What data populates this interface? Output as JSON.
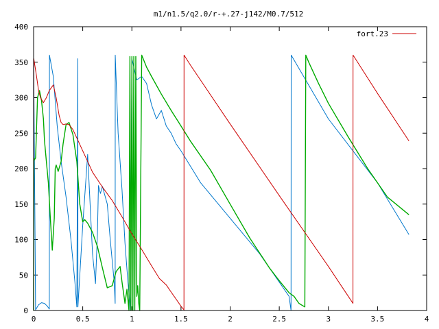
{
  "chart_data": {
    "type": "line",
    "title": "m1/n1.5/q2.0/r-+.27-j142/M0.7/512",
    "xlabel": "",
    "ylabel": "",
    "xlim": [
      0,
      4
    ],
    "ylim": [
      0,
      400
    ],
    "x_ticks": [
      {
        "value": 0,
        "label": "0"
      },
      {
        "value": 0.5,
        "label": "0.5"
      },
      {
        "value": 1,
        "label": "1"
      },
      {
        "value": 1.5,
        "label": "1.5"
      },
      {
        "value": 2,
        "label": "2"
      },
      {
        "value": 2.5,
        "label": "2.5"
      },
      {
        "value": 3,
        "label": "3"
      },
      {
        "value": 3.5,
        "label": "3.5"
      },
      {
        "value": 4,
        "label": "4"
      }
    ],
    "y_ticks": [
      {
        "value": 0,
        "label": "0"
      },
      {
        "value": 50,
        "label": "50"
      },
      {
        "value": 100,
        "label": "100"
      },
      {
        "value": 150,
        "label": "150"
      },
      {
        "value": 200,
        "label": "200"
      },
      {
        "value": 250,
        "label": "250"
      },
      {
        "value": 300,
        "label": "300"
      },
      {
        "value": 350,
        "label": "350"
      },
      {
        "value": 400,
        "label": "400"
      }
    ],
    "grid": false,
    "legend": {
      "position": "top-right",
      "entries": [
        "fort.23"
      ]
    },
    "series": [
      {
        "name": "fort.23",
        "color": "#cc0000",
        "in_legend": true,
        "x": [
          0,
          0.002,
          0.01,
          0.03,
          0.05,
          0.07,
          0.1,
          0.13,
          0.16,
          0.2,
          0.23,
          0.26,
          0.28,
          0.3,
          0.33,
          0.36,
          0.4,
          0.45,
          0.5,
          0.55,
          0.6,
          0.7,
          0.8,
          0.9,
          1.0,
          1.1,
          1.2,
          1.28,
          1.35,
          1.4,
          1.45,
          1.5,
          1.53,
          1.531,
          1.6,
          2.0,
          2.5,
          3.0,
          3.25,
          3.251,
          3.5,
          3.82
        ],
        "y": [
          180,
          355,
          348,
          330,
          310,
          300,
          293,
          300,
          310,
          318,
          300,
          275,
          265,
          262,
          263,
          262,
          255,
          240,
          225,
          210,
          195,
          174,
          155,
          132,
          108,
          86,
          63,
          45,
          36,
          26,
          16,
          6,
          1,
          360,
          345,
          263,
          162,
          62,
          10,
          360,
          306,
          239
        ]
      },
      {
        "name": "",
        "color": "#00aa00",
        "in_legend": false,
        "x": [
          0,
          0.003,
          0.006,
          0.02,
          0.04,
          0.06,
          0.08,
          0.1,
          0.11,
          0.13,
          0.15,
          0.17,
          0.19,
          0.21,
          0.22,
          0.23,
          0.25,
          0.28,
          0.3,
          0.33,
          0.36,
          0.4,
          0.44,
          0.47,
          0.5,
          0.52,
          0.55,
          0.6,
          0.65,
          0.7,
          0.75,
          0.8,
          0.84,
          0.88,
          0.9,
          0.93,
          0.95,
          0.97,
          0.98,
          0.99,
          1.0,
          1.01,
          1.02,
          1.03,
          1.04,
          1.05,
          1.06,
          1.07,
          1.08,
          1.1,
          1.15,
          1.2,
          1.3,
          1.4,
          1.5,
          1.6,
          1.8,
          2.0,
          2.2,
          2.4,
          2.5,
          2.6,
          2.65,
          2.7,
          2.76,
          2.77,
          2.8,
          2.9,
          3.0,
          3.2,
          3.4,
          3.6,
          3.82
        ],
        "y": [
          0,
          215,
          212,
          215,
          300,
          310,
          296,
          270,
          240,
          210,
          180,
          130,
          85,
          130,
          200,
          205,
          196,
          210,
          235,
          262,
          265,
          248,
          210,
          150,
          125,
          128,
          123,
          110,
          90,
          60,
          32,
          35,
          55,
          62,
          40,
          10,
          30,
          0,
          358,
          0,
          358,
          0,
          358,
          0,
          358,
          20,
          35,
          10,
          0,
          360,
          343,
          330,
          305,
          282,
          260,
          238,
          198,
          150,
          102,
          60,
          42,
          25,
          20,
          10,
          5,
          360,
          350,
          320,
          292,
          245,
          200,
          160,
          135
        ]
      },
      {
        "name": "",
        "color": "#0077cc",
        "in_legend": false,
        "x": [
          0,
          0.001,
          0.02,
          0.05,
          0.08,
          0.11,
          0.14,
          0.16,
          0.161,
          0.2,
          0.24,
          0.28,
          0.33,
          0.38,
          0.42,
          0.44,
          0.45,
          0.451,
          0.5,
          0.55,
          0.6,
          0.63,
          0.65,
          0.66,
          0.68,
          0.7,
          0.72,
          0.75,
          0.78,
          0.82,
          0.83,
          0.831,
          0.86,
          0.9,
          0.93,
          0.96,
          0.98,
          0.985,
          1.0,
          1.05,
          1.1,
          1.15,
          1.2,
          1.25,
          1.3,
          1.35,
          1.4,
          1.45,
          1.5,
          1.7,
          2.0,
          2.3,
          2.6,
          2.62,
          2.621,
          3.0,
          3.5,
          3.82
        ],
        "y": [
          0,
          355,
          1,
          8,
          11,
          10,
          6,
          2,
          360,
          330,
          260,
          210,
          160,
          100,
          40,
          5,
          355,
          5,
          120,
          220,
          80,
          38,
          110,
          176,
          165,
          175,
          165,
          150,
          100,
          40,
          10,
          360,
          250,
          170,
          95,
          40,
          10,
          0,
          355,
          325,
          330,
          320,
          290,
          270,
          282,
          260,
          250,
          235,
          225,
          180,
          130,
          80,
          20,
          0,
          360,
          270,
          180,
          107
        ]
      }
    ]
  }
}
